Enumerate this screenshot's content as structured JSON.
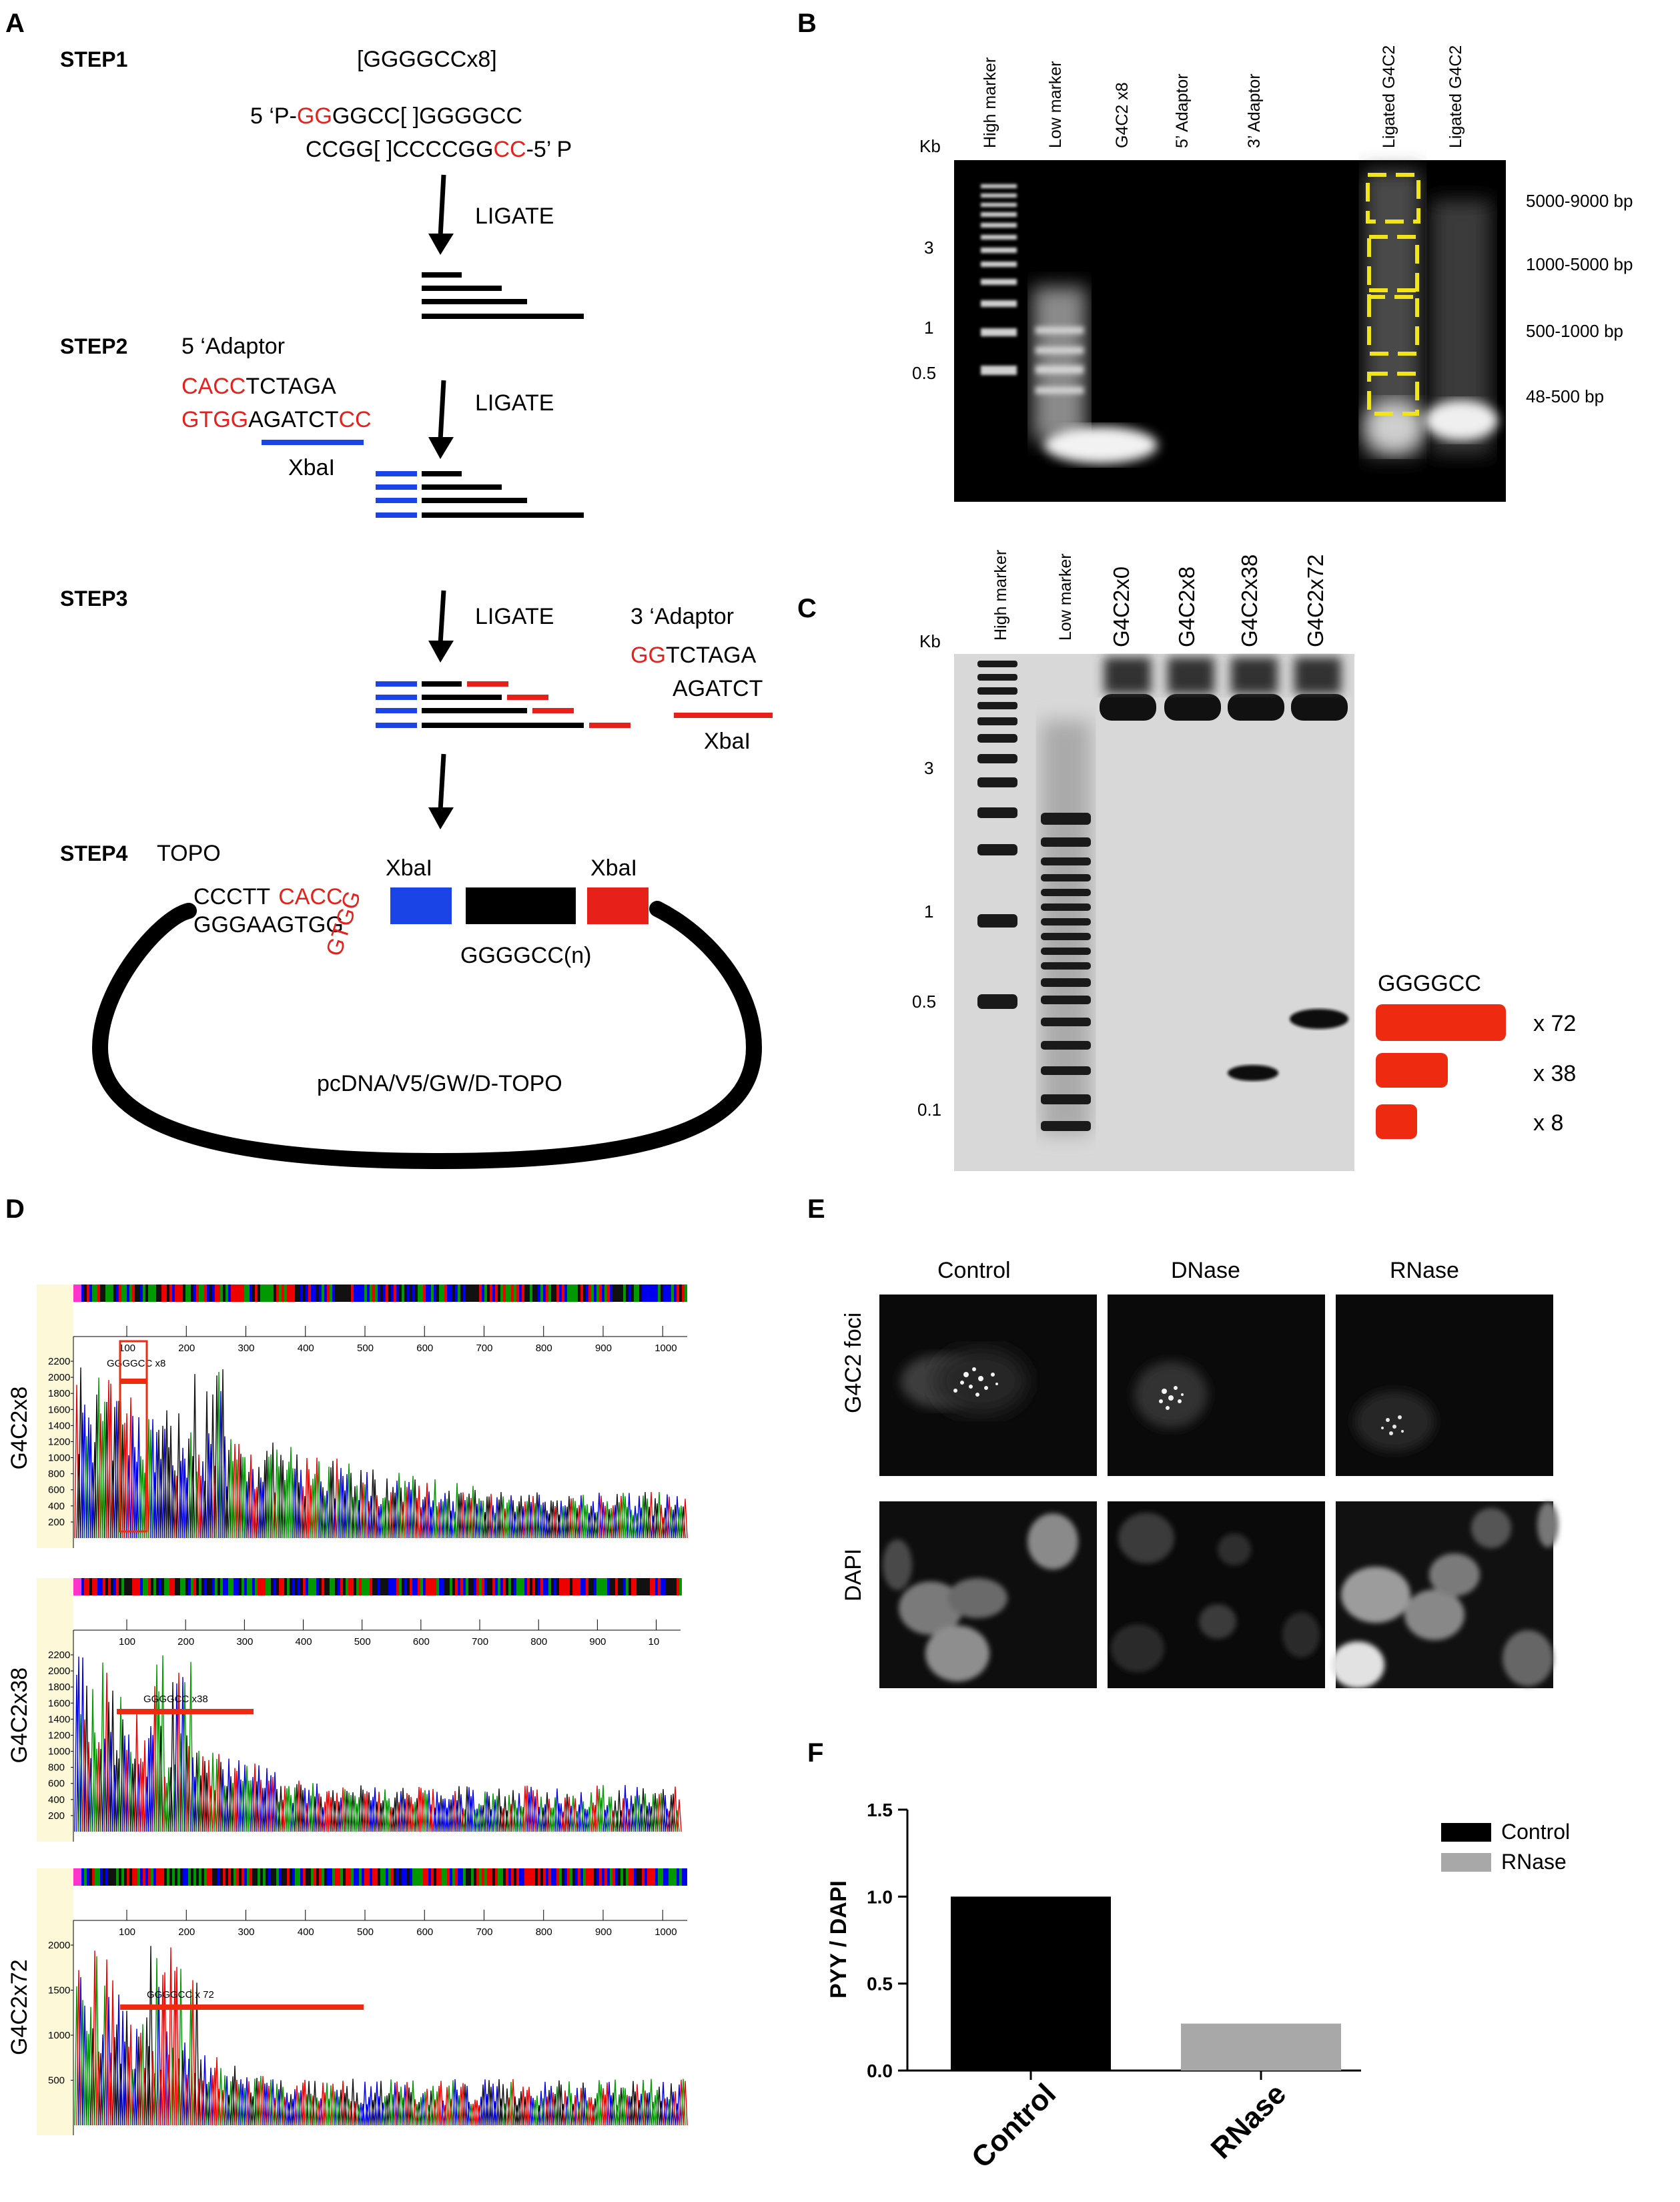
{
  "labels": {
    "A": "A",
    "B": "B",
    "C": "C",
    "D": "D",
    "E": "E",
    "F": "F"
  },
  "panelA": {
    "step1": "STEP1",
    "step2": "STEP2",
    "step3": "STEP3",
    "step4": "STEP4",
    "repeat": "[GGGGCCx8]",
    "top_prefix": "5 ‘P-",
    "top_red": "GG",
    "top_rest": "GGCC[ ]GGGGCC",
    "bottom_main": "CCGG[ ]CCCCGG",
    "bottom_red": "CC",
    "bottom_suffix": "-5’ P",
    "ligate": "LIGATE",
    "adaptor5_title": "5 ‘Adaptor",
    "a5_top_red": "CACC",
    "a5_top_rest": "TCTAGA",
    "a5_bot_red": "GTGG",
    "a5_bot_mid": "AGATCT",
    "a5_bot_red2": "CC",
    "xbai": "XbaI",
    "adaptor3_title": "3 ‘Adaptor",
    "a3_top_red": "GG",
    "a3_top_rest": "TCTAGA",
    "a3_bot": "AGATCT",
    "topo": "TOPO",
    "topo_top": "CCCTT",
    "topo_top_red": "CACC",
    "topo_bot": "GGGAAGTGG",
    "topo_red_vertical": "GTGG",
    "insert": "GGGGCC(n)",
    "vector": "pcDNA/V5/GW/D-TOPO"
  },
  "panelB": {
    "kb": "Kb",
    "lanes": [
      "High marker",
      "Low marker",
      "G4C2 x8",
      "5’ Adaptor",
      "3’ Adaptor",
      "Ligated G4C2",
      "Ligated G4C2"
    ],
    "ticks": [
      "3",
      "1",
      "0.5"
    ],
    "ranges": [
      "5000-9000 bp",
      "1000-5000 bp",
      "500-1000 bp",
      "48-500 bp"
    ]
  },
  "panelC": {
    "kb": "Kb",
    "lanes": [
      "High marker",
      "Low marker",
      "G4C2x0",
      "G4C2x8",
      "G4C2x38",
      "G4C2x72"
    ],
    "ticks": [
      "3",
      "1",
      "0.5",
      "0.1"
    ],
    "legend_title": "GGGGCC",
    "legend": [
      "x 72",
      "x 38",
      "x  8"
    ]
  },
  "panelD": {
    "traces": [
      {
        "name": "G4C2x8",
        "annotation": "GGGGCC x8",
        "xticks": [
          "100",
          "200",
          "300",
          "400",
          "500",
          "600",
          "700",
          "800",
          "900",
          "1000"
        ],
        "yticks": [
          "2200",
          "2000",
          "1800",
          "1600",
          "1400",
          "1200",
          "1000",
          "800",
          "600",
          "400",
          "200"
        ]
      },
      {
        "name": "G4C2x38",
        "annotation": "GGGGCC x38",
        "xticks": [
          "100",
          "200",
          "300",
          "400",
          "500",
          "600",
          "700",
          "800",
          "900",
          "10"
        ],
        "yticks": [
          "2200",
          "2000",
          "1800",
          "1600",
          "1400",
          "1200",
          "1000",
          "800",
          "600",
          "400",
          "200"
        ]
      },
      {
        "name": "G4C2x72",
        "annotation": "GGGGCC x 72",
        "xticks": [
          "100",
          "200",
          "300",
          "400",
          "500",
          "600",
          "700",
          "800",
          "900",
          "1000"
        ],
        "yticks": [
          "2000",
          "1500",
          "1000",
          "500"
        ]
      }
    ]
  },
  "panelE": {
    "cols": [
      "Control",
      "DNase",
      "RNase"
    ],
    "rows": [
      "G4C2 foci",
      "DAPI"
    ]
  },
  "chart_data": {
    "type": "bar",
    "categories": [
      "Control",
      "RNase"
    ],
    "values": [
      1.0,
      0.27
    ],
    "title": "",
    "xlabel": "",
    "ylabel": "PYY / DAPI",
    "ylim": [
      0,
      1.5
    ],
    "yticks": [
      "0.0",
      "0.5",
      "1.0",
      "1.5"
    ],
    "legend": [
      "Control",
      "RNase"
    ],
    "colors": [
      "#000000",
      "#a8a8a8"
    ],
    "legend_position": "top-right"
  }
}
